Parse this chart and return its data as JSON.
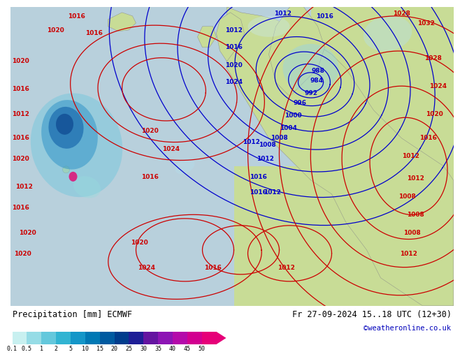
{
  "title_left": "Precipitation [mm] ECMWF",
  "title_right": "Fr 27-09-2024 15..18 UTC (12+30)",
  "credit": "©weatheronline.co.uk",
  "colorbar_values": [
    "0.1",
    "0.5",
    "1",
    "2",
    "5",
    "10",
    "15",
    "20",
    "25",
    "30",
    "35",
    "40",
    "45",
    "50"
  ],
  "colorbar_colors": [
    "#c8f0f0",
    "#96dce6",
    "#64c8dc",
    "#32b4d2",
    "#1496c8",
    "#0078b4",
    "#005aa0",
    "#003c8c",
    "#1e1e96",
    "#6414a0",
    "#8c14b4",
    "#b40aaa",
    "#d20090",
    "#e60078",
    "#c83278"
  ],
  "land_color": "#c8dc96",
  "sea_color": "#a0c8e6",
  "bg_white": "#ffffff",
  "title_fontsize": 8.5,
  "credit_fontsize": 7.5,
  "credit_color": "#0000bb",
  "label_color_blue": "#0000cc",
  "label_color_red": "#cc0000",
  "isobar_fontsize": 6.5
}
